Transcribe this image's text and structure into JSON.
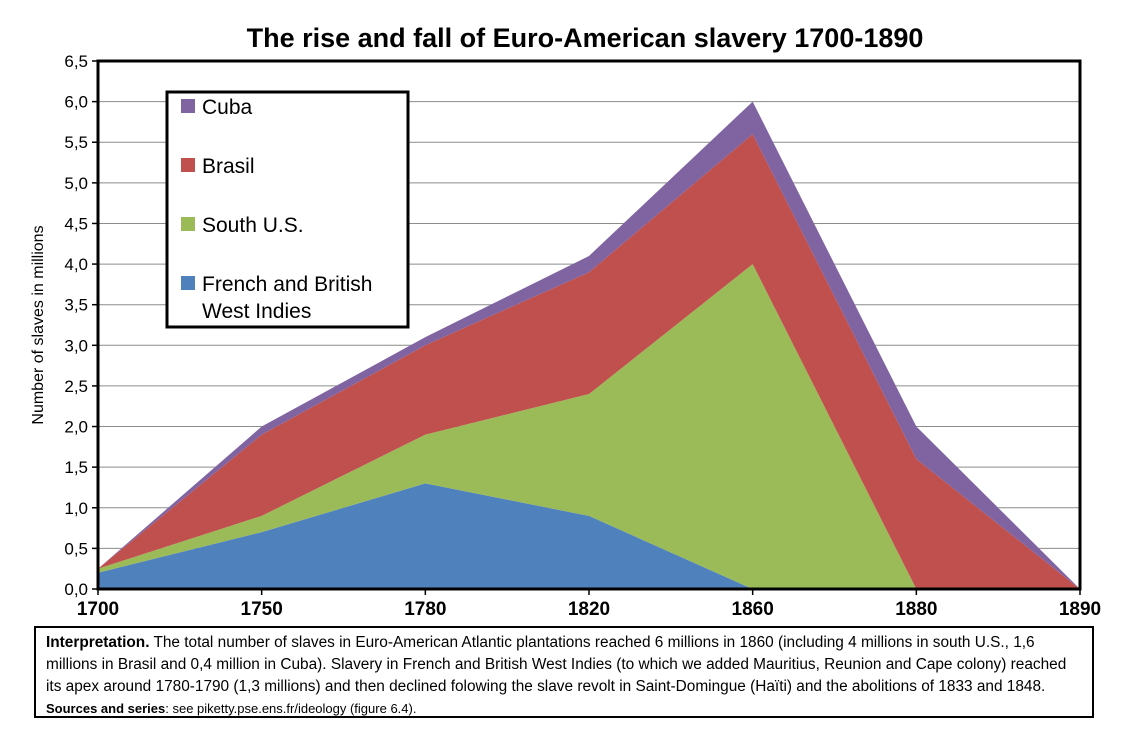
{
  "chart_data": {
    "type": "area",
    "stacked": true,
    "title": "The rise and fall of Euro-American slavery 1700-1890",
    "ylabel": "Number of slaves in millions",
    "xlabel": "",
    "x": [
      "1700",
      "1750",
      "1780",
      "1820",
      "1860",
      "1880",
      "1890"
    ],
    "ylim": [
      0,
      6.5
    ],
    "yticks": [
      "0,0",
      "0,5",
      "1,0",
      "1,5",
      "2,0",
      "2,5",
      "3,0",
      "3,5",
      "4,0",
      "4,5",
      "5,0",
      "5,5",
      "6,0",
      "6,5"
    ],
    "grid": true,
    "legend_position": "top-left",
    "series": [
      {
        "name": "French and British West Indies",
        "color": "#4f81bd",
        "values": [
          0.2,
          0.7,
          1.3,
          0.9,
          0.0,
          0.0,
          0.0
        ]
      },
      {
        "name": "South U.S.",
        "color": "#9bbb59",
        "values": [
          0.05,
          0.2,
          0.6,
          1.5,
          4.0,
          0.0,
          0.0
        ]
      },
      {
        "name": "Brasil",
        "color": "#c0504d",
        "values": [
          0.0,
          1.0,
          1.1,
          1.5,
          1.6,
          1.6,
          0.0
        ]
      },
      {
        "name": "Cuba",
        "color": "#8064a2",
        "values": [
          0.0,
          0.1,
          0.1,
          0.2,
          0.4,
          0.4,
          0.0
        ]
      }
    ],
    "legend_order": [
      "Cuba",
      "Brasil",
      "South U.S.",
      "French and British West Indies"
    ]
  },
  "note": {
    "label": "Interpretation.",
    "text": "The total number of slaves in Euro-American Atlantic plantations reached 6 millions in 1860 (including 4 millions in south U.S., 1,6 millions in Brasil and 0,4 million in Cuba). Slavery in French and British West Indies (to which we added Mauritius, Reunion and Cape colony) reached its apex around 1780-1790 (1,3 millions) and then declined folowing the slave revolt in Saint-Domingue (Haïti) and the abolitions of 1833 and 1848.",
    "source_label": "Sources and series",
    "source_text": ": see piketty.pse.ens.fr/ideology (figure 6.4)."
  }
}
